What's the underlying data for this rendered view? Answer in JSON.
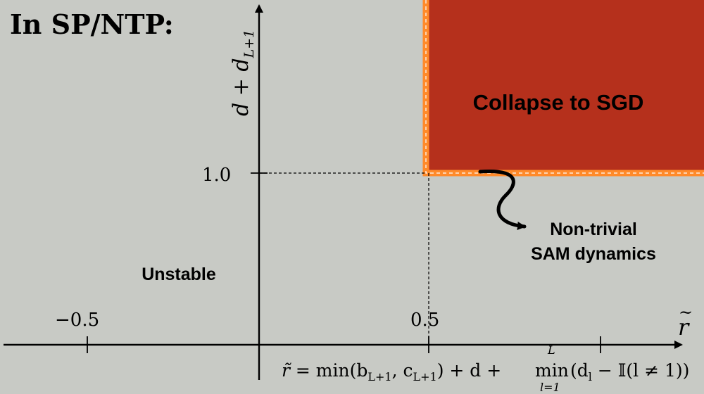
{
  "header": {
    "title": "In SP/NTP:"
  },
  "axes": {
    "y_label_main": "d + d",
    "y_label_sub": "L+1",
    "x_label": "r",
    "x_label_accent": "~",
    "y_tick_label": "1.0",
    "x_tick_labels": [
      "−0.5",
      "0.5"
    ]
  },
  "regions": {
    "collapse_label": "Collapse to SGD",
    "unstable_label": "Unstable",
    "nontrivial_label_line1": "Non-trivial",
    "nontrivial_label_line2": "SAM dynamics"
  },
  "formula": {
    "r_tilde": "r̃",
    "equals_min": " = min(b",
    "b_sub": "L+1",
    "c_part": ", c",
    "c_sub": "L+1",
    "plus_d_plus": ") + d + ",
    "min_word": "min",
    "min_upper": "L",
    "min_lower": "l=1",
    "tail_open": "(d",
    "d_sub": "l",
    "tail_close": " − 𝕀(l ≠ 1))"
  },
  "colors": {
    "background": "#c8cac5",
    "region_fill": "#b5301c",
    "region_border": "#ff8a2a",
    "ink": "#000000"
  }
}
